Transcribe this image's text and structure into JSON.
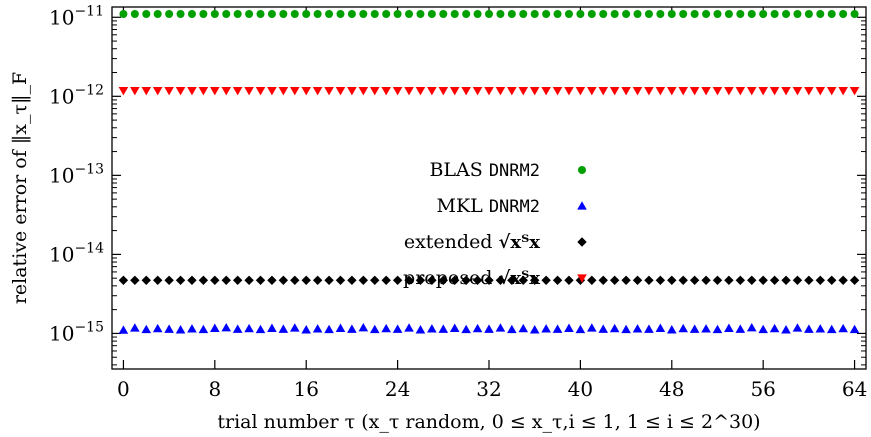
{
  "chart_data": {
    "type": "scatter",
    "xlabel": "trial number τ (x_τ random, 0 ≤ x_τ,i ≤ 1, 1 ≤ i ≤ 2^30)",
    "ylabel": "relative error of ‖x_τ‖_F",
    "x_ticks": [
      0,
      8,
      16,
      24,
      32,
      40,
      48,
      56,
      64
    ],
    "y_ticks": [
      {
        "value": 1e-15,
        "base": "10",
        "exp": "−15"
      },
      {
        "value": 1e-14,
        "base": "10",
        "exp": "−14"
      },
      {
        "value": 1e-13,
        "base": "10",
        "exp": "−13"
      },
      {
        "value": 1e-12,
        "base": "10",
        "exp": "−12"
      },
      {
        "value": 1e-11,
        "base": "10",
        "exp": "−11"
      }
    ],
    "xlim": [
      -1,
      65
    ],
    "ylim_log10": [
      -15.45,
      -10.87
    ],
    "y_scale": "log",
    "legend_placement": "center",
    "series": [
      {
        "name": "BLAS DNRM2",
        "name_prefix": "BLAS ",
        "name_mono": "DNRM2",
        "name_suffix": "",
        "marker": "circle",
        "color": "#00a000",
        "x_start": 0,
        "x_end": 64,
        "y": 1.1e-11
      },
      {
        "name": "MKL DNRM2",
        "name_prefix": "MKL ",
        "name_mono": "DNRM2",
        "name_suffix": "",
        "marker": "triangle-up",
        "color": "#0000ff",
        "x_start": 0,
        "x_end": 64,
        "y_values": [
          1.1e-15,
          1.17e-15,
          1.12e-15,
          1.15e-15,
          1.13e-15,
          1.11e-15,
          1.14e-15,
          1.12e-15,
          1.16e-15,
          1.18e-15,
          1.13e-15,
          1.15e-15,
          1.12e-15,
          1.16e-15,
          1.13e-15,
          1.17e-15,
          1.11e-15,
          1.14e-15,
          1.12e-15,
          1.16e-15,
          1.13e-15,
          1.18e-15,
          1.12e-15,
          1.15e-15,
          1.13e-15,
          1.17e-15,
          1.11e-15,
          1.14e-15,
          1.13e-15,
          1.16e-15,
          1.12e-15,
          1.15e-15,
          1.13e-15,
          1.17e-15,
          1.12e-15,
          1.15e-15,
          1.11e-15,
          1.14e-15,
          1.13e-15,
          1.16e-15,
          1.12e-15,
          1.17e-15,
          1.13e-15,
          1.15e-15,
          1.12e-15,
          1.14e-15,
          1.13e-15,
          1.16e-15,
          1.11e-15,
          1.15e-15,
          1.13e-15,
          1.14e-15,
          1.12e-15,
          1.16e-15,
          1.13e-15,
          1.18e-15,
          1.12e-15,
          1.15e-15,
          1.11e-15,
          1.17e-15,
          1.13e-15,
          1.14e-15,
          1.12e-15,
          1.15e-15,
          1.12e-15
        ]
      },
      {
        "name": "extended √(xᵀx)",
        "name_prefix": "extended ",
        "name_mono": "",
        "name_suffix": "√xᵀx",
        "marker": "diamond",
        "color": "#000000",
        "x_start": 0,
        "x_end": 64,
        "y": 4.7e-15
      },
      {
        "name": "proposed √(xᵀx)",
        "name_prefix": "proposed ",
        "name_mono": "",
        "name_suffix": "√xᵀx",
        "marker": "triangle-down",
        "color": "#ff0000",
        "x_start": 0,
        "x_end": 64,
        "y": 1.18e-12
      }
    ]
  }
}
